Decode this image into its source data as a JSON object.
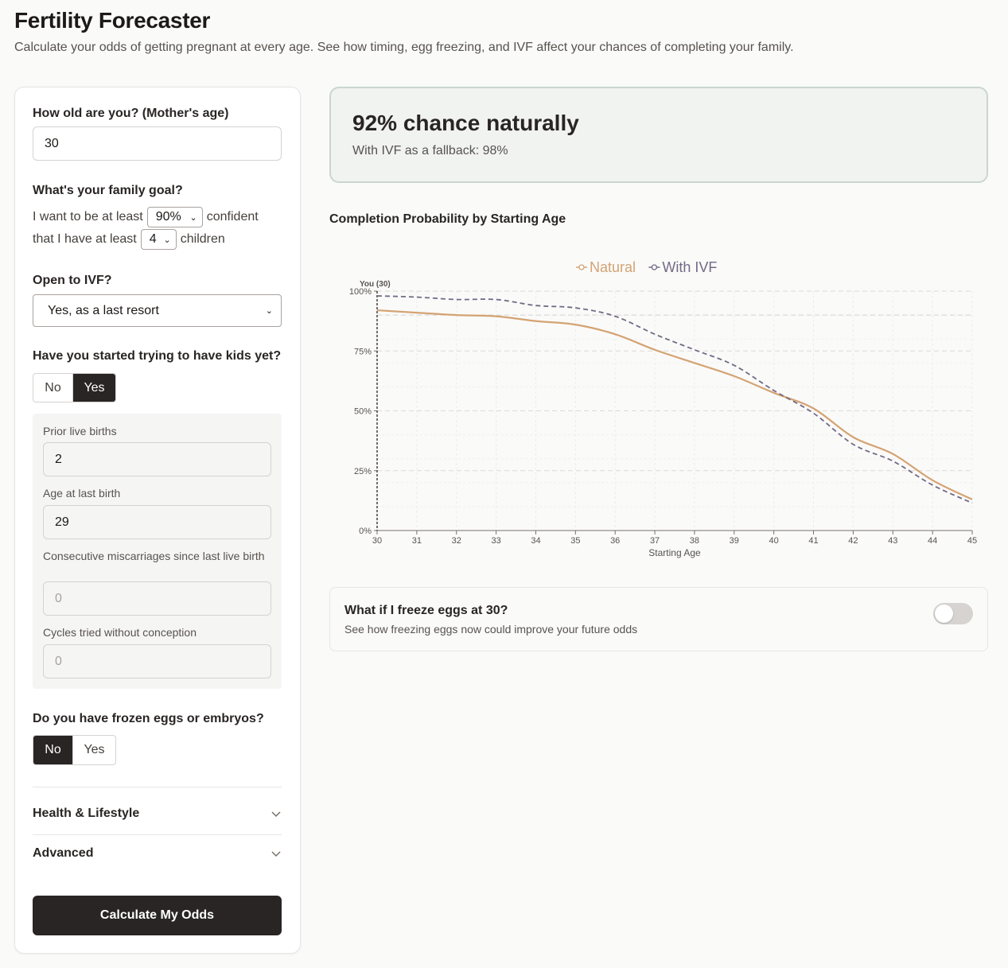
{
  "header": {
    "title": "Fertility Forecaster",
    "subtitle": "Calculate your odds of getting pregnant at every age. See how timing, egg freezing, and IVF affect your chances of completing your family."
  },
  "form": {
    "age_label": "How old are you? (Mother's age)",
    "age_value": "30",
    "goal_label": "What's your family goal?",
    "goal_prefix": "I want to be at least",
    "confidence_value": "90%",
    "goal_middle": "confident",
    "goal_prefix2": "that I have at least",
    "children_value": "4",
    "goal_suffix": "children",
    "ivf_label": "Open to IVF?",
    "ivf_value": "Yes, as a last resort",
    "trying_label": "Have you started trying to have kids yet?",
    "trying_no": "No",
    "trying_yes": "Yes",
    "history": {
      "prior_births_label": "Prior live births",
      "prior_births_value": "2",
      "last_birth_age_label": "Age at last birth",
      "last_birth_age_value": "29",
      "miscarriages_label": "Consecutive miscarriages since last live birth",
      "miscarriages_placeholder": "0",
      "cycles_label": "Cycles tried without conception",
      "cycles_placeholder": "0"
    },
    "frozen_label": "Do you have frozen eggs or embryos?",
    "frozen_no": "No",
    "frozen_yes": "Yes",
    "health_label": "Health & Lifestyle",
    "advanced_label": "Advanced",
    "submit_label": "Calculate My Odds"
  },
  "result": {
    "headline": "92% chance naturally",
    "subline": "With IVF as a fallback: 98%"
  },
  "chart_title": "Completion Probability by Starting Age",
  "chart_data": {
    "type": "line",
    "xlabel": "Starting Age",
    "ylabel": "",
    "x": [
      30,
      31,
      32,
      33,
      34,
      35,
      36,
      37,
      38,
      39,
      40,
      41,
      42,
      43,
      44,
      45
    ],
    "xlim": [
      30,
      45
    ],
    "ylim": [
      0,
      100
    ],
    "y_ticks": [
      "0%",
      "25%",
      "50%",
      "75%",
      "100%"
    ],
    "x_ticks": [
      "30",
      "31",
      "32",
      "33",
      "34",
      "35",
      "36",
      "37",
      "38",
      "39",
      "40",
      "41",
      "42",
      "43",
      "44",
      "45"
    ],
    "series": [
      {
        "name": "Natural",
        "color": "#d4a373",
        "dash": false,
        "values": [
          92,
          91,
          90,
          89.5,
          87.5,
          86,
          82,
          75.5,
          70,
          64.5,
          57.5,
          51,
          39,
          32,
          21,
          13
        ]
      },
      {
        "name": "With IVF",
        "color": "#736a85",
        "dash": true,
        "values": [
          98,
          97.5,
          96.5,
          96.5,
          94,
          93,
          89.5,
          82,
          75.5,
          69,
          58.5,
          49,
          36,
          29,
          19,
          11.5
        ]
      }
    ],
    "reference_line_y": 90,
    "marker": {
      "x": 30,
      "label": "You (30)"
    },
    "legend_position": "top-center",
    "grid": true
  },
  "freeze": {
    "title": "What if I freeze eggs at 30?",
    "subtitle": "See how freezing eggs now could improve your future odds",
    "enabled": false
  }
}
